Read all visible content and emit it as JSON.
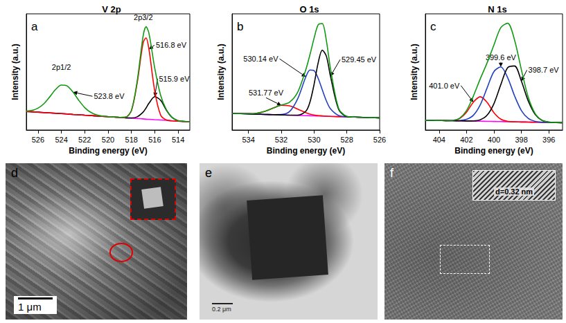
{
  "chart_data": [
    {
      "type": "line",
      "panel": "a",
      "title": "V 2p",
      "xlabel": "Binding energy (eV)",
      "ylabel": "Intensity (a.u.)",
      "x": [
        527,
        526.5,
        526,
        525.5,
        525,
        524.5,
        524,
        523.5,
        523,
        522.5,
        522,
        521.5,
        521,
        520.5,
        520,
        519.5,
        519,
        518.5,
        518,
        517.5,
        517,
        516.75,
        516.5,
        516,
        515.5,
        515,
        514.5,
        514,
        513.5,
        513
      ],
      "series": [
        {
          "color": "#ff00ff",
          "values": [
            16.0,
            15.7,
            15.4,
            15.0,
            14.7,
            14.4,
            14.1,
            13.8,
            13.4,
            13.1,
            12.8,
            12.5,
            12.1,
            11.8,
            11.5,
            11.2,
            10.9,
            10.5,
            10.2,
            9.9,
            9.6,
            9.3,
            9.2,
            8.9,
            8.6,
            8.3,
            7.9,
            7.6,
            7.3,
            7.0
          ]
        },
        {
          "color": "#000000",
          "values": [
            16.0,
            15.7,
            15.4,
            15.0,
            14.7,
            14.4,
            14.1,
            13.8,
            13.4,
            13.1,
            12.8,
            12.5,
            12.1,
            11.8,
            11.5,
            11.2,
            10.9,
            10.5,
            10.4,
            11.4,
            15.4,
            18.9,
            23.0,
            28.7,
            25.6,
            17.0,
            10.6,
            8.1,
            7.4,
            7.0
          ]
        },
        {
          "color": "#ff0000",
          "values": [
            16.0,
            15.7,
            15.4,
            15.0,
            14.7,
            14.4,
            14.1,
            13.8,
            13.4,
            13.1,
            12.8,
            12.5,
            12.1,
            11.8,
            11.5,
            11.2,
            10.9,
            11.1,
            16.7,
            41.0,
            75.1,
            79.3,
            69.5,
            33.2,
            12.9,
            8.6,
            7.9,
            7.6,
            7.3,
            7.0
          ]
        },
        {
          "color": "#119911",
          "values": [
            16.4,
            16.9,
            18.8,
            22.6,
            28.5,
            34.8,
            38.7,
            37.9,
            32.6,
            25.5,
            19.3,
            15.3,
            13.1,
            12.1,
            11.6,
            11.2,
            10.9,
            11.1,
            16.9,
            42.5,
            80.9,
            88.9,
            83.3,
            53.0,
            29.9,
            17.3,
            10.6,
            8.1,
            7.4,
            7.0
          ]
        }
      ],
      "xlim": [
        527,
        513
      ],
      "xticks": [
        526,
        524,
        522,
        520,
        518,
        516,
        514
      ],
      "ylim": [
        0,
        100
      ],
      "tick_labels": "x",
      "grid": false,
      "annotations": [
        {
          "text": "2p3/2",
          "x": 516.75,
          "y": 88.9
        },
        {
          "text": "2p1/2",
          "x": 524,
          "y": 38.7
        },
        {
          "text": "523.8 eV",
          "x": 523,
          "y": 32.6
        },
        {
          "text": "516.8 eV",
          "x": 516.5,
          "y": 69.5
        },
        {
          "text": "515.9 eV",
          "x": 516,
          "y": 28.7
        }
      ]
    },
    {
      "type": "line",
      "panel": "b",
      "title": "O 1s",
      "xlabel": "Binding energy (eV)",
      "ylabel": "Intensity (a.u.)",
      "x": [
        535,
        534.5,
        534,
        533.5,
        533,
        532.5,
        532,
        531.5,
        531,
        530.5,
        530.25,
        530,
        529.75,
        529.5,
        529.25,
        529,
        528.5,
        528,
        527.5,
        527,
        526.5,
        526
      ],
      "series": [
        {
          "color": "#ff00ff",
          "values": [
            15.0,
            14.8,
            14.6,
            14.3,
            14.1,
            13.9,
            13.7,
            13.4,
            13.2,
            13.0,
            12.9,
            12.8,
            12.7,
            12.6,
            12.4,
            12.3,
            12.1,
            11.9,
            11.7,
            11.4,
            11.2,
            11.0
          ]
        },
        {
          "color": "#ff0000",
          "values": [
            15.0,
            14.8,
            14.8,
            15.2,
            16.9,
            19.8,
            22.3,
            21.9,
            18.9,
            15.6,
            14.4,
            13.6,
            13.1,
            12.8,
            12.5,
            12.3,
            12.1,
            11.9,
            11.7,
            11.4,
            11.2,
            11.0
          ]
        },
        {
          "color": "#2040c0",
          "values": [
            15.0,
            14.8,
            14.6,
            14.3,
            14.1,
            13.9,
            14.0,
            16.6,
            28.2,
            48.1,
            54.2,
            53.7,
            46.7,
            36.4,
            26.4,
            19.2,
            13.1,
            12.0,
            11.7,
            11.4,
            11.2,
            11.0
          ]
        },
        {
          "color": "#000000",
          "values": [
            15.0,
            14.8,
            14.6,
            14.3,
            14.1,
            13.9,
            13.7,
            13.4,
            13.4,
            17.0,
            25.3,
            41.2,
            60.7,
            72.2,
            66.8,
            48.7,
            18.6,
            12.2,
            11.7,
            11.4,
            11.2,
            11.0
          ]
        },
        {
          "color": "#119911",
          "values": [
            15.0,
            14.8,
            14.8,
            15.2,
            16.9,
            19.8,
            22.6,
            25.1,
            34.1,
            54.7,
            68.1,
            82.9,
            95.1,
            96.2,
            80.9,
            55.6,
            19.6,
            12.3,
            11.7,
            11.4,
            11.2,
            11.0
          ]
        }
      ],
      "xlim": [
        535,
        526
      ],
      "xticks": [
        534,
        532,
        530,
        528,
        526
      ],
      "ylim": [
        0,
        105
      ],
      "tick_labels": "x",
      "grid": false,
      "annotations": [
        {
          "text": "530.14 eV",
          "x": 530.5,
          "y": 48.1
        },
        {
          "text": "529.45 eV",
          "x": 529,
          "y": 48.7
        },
        {
          "text": "531.77 eV",
          "x": 532,
          "y": 22.3
        }
      ]
    },
    {
      "type": "line",
      "panel": "c",
      "title": "N 1s",
      "xlabel": "Binding energy (eV)",
      "ylabel": "Intensity (a.u.)",
      "x": [
        405,
        404.5,
        404,
        403.5,
        403,
        402.5,
        402,
        401.5,
        401,
        400.5,
        400,
        399.5,
        399,
        398.5,
        398,
        397.5,
        397,
        396.5,
        396,
        395.5,
        395
      ],
      "series": [
        {
          "color": "#ff00ff",
          "values": [
            8.0,
            7.9,
            7.8,
            7.7,
            7.6,
            7.5,
            7.4,
            7.3,
            7.2,
            7.1,
            7.0,
            6.9,
            6.8,
            6.7,
            6.6,
            6.5,
            6.4,
            6.3,
            6.2,
            6.1,
            6.0
          ]
        },
        {
          "color": "#ff0000",
          "values": [
            8.0,
            7.9,
            7.8,
            7.7,
            7.9,
            9.5,
            14.6,
            22.8,
            27.2,
            22.6,
            14.2,
            8.9,
            7.1,
            6.7,
            6.6,
            6.5,
            6.4,
            6.3,
            6.2,
            6.1,
            6.0
          ]
        },
        {
          "color": "#2040c0",
          "values": [
            8.0,
            7.9,
            7.8,
            7.7,
            7.6,
            7.7,
            8.7,
            12.1,
            20.6,
            34.4,
            47.8,
            51.6,
            42.8,
            28.0,
            15.9,
            9.5,
            7.1,
            6.4,
            6.2,
            6.1,
            6.0
          ]
        },
        {
          "color": "#000000",
          "values": [
            8.0,
            7.9,
            7.8,
            7.7,
            7.6,
            7.5,
            7.4,
            7.5,
            8.4,
            12.1,
            21.6,
            37.1,
            51.0,
            52.4,
            40.0,
            23.8,
            12.8,
            7.9,
            6.5,
            6.1,
            6.0
          ]
        },
        {
          "color": "#119911",
          "values": [
            8.0,
            7.9,
            7.8,
            7.7,
            7.9,
            9.7,
            15.9,
            27.8,
            41.8,
            54.9,
            69.6,
            83.8,
            87.3,
            73.7,
            49.3,
            26.8,
            13.5,
            8.0,
            6.5,
            6.1,
            6.0
          ]
        }
      ],
      "xlim": [
        405,
        395
      ],
      "xticks": [
        404,
        402,
        400,
        398,
        396
      ],
      "ylim": [
        0,
        95
      ],
      "tick_labels": "x",
      "grid": false,
      "annotations": [
        {
          "text": "401.0 eV",
          "x": 401.5,
          "y": 22.8
        },
        {
          "text": "399.6 eV",
          "x": 399.5,
          "y": 51.6
        },
        {
          "text": "398.7 eV",
          "x": 398,
          "y": 40.0
        }
      ]
    }
  ],
  "images": [
    {
      "panel": "d",
      "scale_bar": "1 μm"
    },
    {
      "panel": "e",
      "scale_bar": "0.2 μm"
    },
    {
      "panel": "f",
      "inset_text": "d=0.32 nm"
    }
  ]
}
